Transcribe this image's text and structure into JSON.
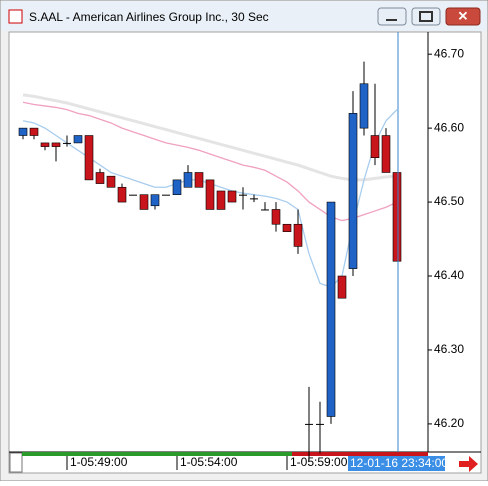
{
  "chart_data": {
    "type": "candlestick",
    "title": "S.AAL - American Airlines Group Inc., 30 Sec",
    "categories": [
      null,
      null,
      null,
      null,
      "1-05:49:00",
      null,
      null,
      null,
      null,
      null,
      null,
      null,
      null,
      null,
      "1-05:54:00",
      null,
      null,
      null,
      null,
      null,
      null,
      null,
      null,
      null,
      "1-05:59:00",
      null,
      null,
      null,
      null,
      null,
      null,
      null,
      null,
      null,
      null
    ],
    "open": [
      46.59,
      46.6,
      46.58,
      46.58,
      46.58,
      46.58,
      46.59,
      46.54,
      46.535,
      46.52,
      46.51,
      46.51,
      46.495,
      46.51,
      46.51,
      46.52,
      46.54,
      46.53,
      46.515,
      46.515,
      46.51,
      46.505,
      46.49,
      46.49,
      46.47,
      46.47,
      46.2,
      46.2,
      46.21,
      46.4,
      46.41,
      46.6,
      46.59,
      46.59,
      46.54
    ],
    "high": [
      46.6,
      46.6,
      46.58,
      46.58,
      46.59,
      46.59,
      46.59,
      46.545,
      46.535,
      46.525,
      46.51,
      46.51,
      46.51,
      46.51,
      46.53,
      46.55,
      46.54,
      46.53,
      46.515,
      46.515,
      46.52,
      46.51,
      46.5,
      46.5,
      46.47,
      46.49,
      46.25,
      46.23,
      46.5,
      46.4,
      46.65,
      46.69,
      46.66,
      46.6,
      46.54
    ],
    "low": [
      46.585,
      46.585,
      46.57,
      46.555,
      46.575,
      46.58,
      46.53,
      46.525,
      46.52,
      46.5,
      46.51,
      46.49,
      46.49,
      46.51,
      46.51,
      46.52,
      46.52,
      46.49,
      46.49,
      46.5,
      46.49,
      46.5,
      46.49,
      46.46,
      46.46,
      46.43,
      46.15,
      46.16,
      46.2,
      46.37,
      46.4,
      46.59,
      46.55,
      46.54,
      46.42
    ],
    "close": [
      46.6,
      46.59,
      46.575,
      46.575,
      46.58,
      46.59,
      46.53,
      46.525,
      46.52,
      46.5,
      46.51,
      46.49,
      46.51,
      46.51,
      46.53,
      46.54,
      46.52,
      46.49,
      46.49,
      46.5,
      46.51,
      46.505,
      46.49,
      46.47,
      46.46,
      46.44,
      46.2,
      46.2,
      46.5,
      46.37,
      46.62,
      46.66,
      46.56,
      46.54,
      46.42
    ],
    "up_color": "#1f63c6",
    "down_color": "#c8141b",
    "flat_color": "#000000",
    "overlays": [
      {
        "color": "#e4e4e4",
        "values": [
          46.645,
          46.643,
          46.64,
          46.637,
          46.634,
          46.63,
          46.626,
          46.622,
          46.618,
          46.614,
          46.61,
          46.606,
          46.602,
          46.598,
          46.594,
          46.59,
          46.586,
          46.582,
          46.578,
          46.574,
          46.57,
          46.566,
          46.562,
          46.558,
          46.554,
          46.55,
          46.545,
          46.54,
          46.535,
          46.532,
          46.53,
          46.53,
          46.532,
          46.534,
          46.535
        ]
      },
      {
        "color": "#f0a0c0",
        "values": [
          46.635,
          46.632,
          46.63,
          46.628,
          46.625,
          46.62,
          46.617,
          46.612,
          46.607,
          46.6,
          46.595,
          46.59,
          46.585,
          46.58,
          46.577,
          46.574,
          46.57,
          46.565,
          46.56,
          46.555,
          46.55,
          46.547,
          46.543,
          46.535,
          46.527,
          46.515,
          46.5,
          46.49,
          46.48,
          46.475,
          46.478,
          46.483,
          46.488,
          46.493,
          46.5
        ]
      },
      {
        "color": "#a8cdee",
        "values": [
          46.61,
          46.607,
          46.6,
          46.59,
          46.58,
          46.57,
          46.56,
          46.55,
          46.54,
          46.535,
          46.53,
          46.525,
          46.52,
          46.52,
          46.525,
          46.53,
          46.53,
          46.525,
          46.52,
          46.515,
          46.512,
          46.51,
          46.508,
          46.505,
          46.5,
          46.49,
          46.43,
          46.39,
          46.385,
          46.4,
          46.47,
          46.53,
          46.58,
          46.61,
          46.625
        ]
      }
    ],
    "ylim": [
      46.162,
      46.73
    ],
    "yticks": [
      {
        "value": 46.2,
        "label": "46.20"
      },
      {
        "value": 46.3,
        "label": "46.30"
      },
      {
        "value": 46.4,
        "label": "46.40"
      },
      {
        "value": 46.5,
        "label": "46.50"
      },
      {
        "value": 46.6,
        "label": "46.60"
      },
      {
        "value": 46.7,
        "label": "46.70"
      }
    ],
    "cursor_label": "12-01-16 23:34:00"
  }
}
